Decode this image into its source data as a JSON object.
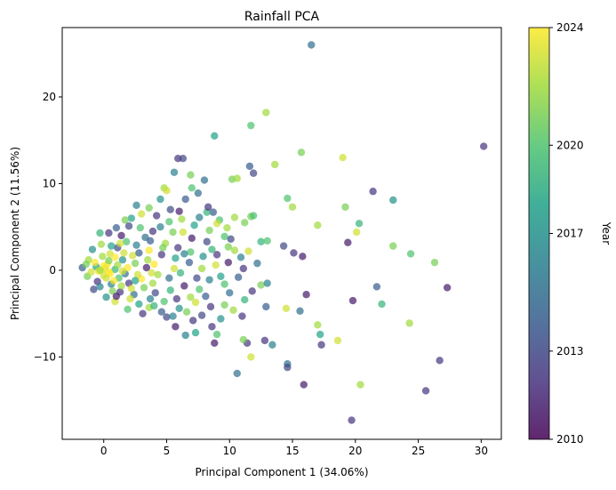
{
  "chart_data": {
    "type": "scatter",
    "title": "Rainfall PCA",
    "xlabel": "Principal Component 1 (34.06%)",
    "ylabel": "Principal Component 2 (11.56%)",
    "xlim": [
      -3.3,
      31.6
    ],
    "ylim": [
      -19.5,
      28.0
    ],
    "x_ticks": [
      0,
      5,
      10,
      15,
      20,
      25,
      30
    ],
    "y_ticks": [
      -10,
      0,
      10,
      20
    ],
    "grid": false,
    "colorbar": {
      "label": "Year",
      "min": 2010,
      "max": 2024,
      "ticks": [
        2010,
        2013,
        2017,
        2020,
        2024
      ],
      "colormap": "viridis"
    },
    "marker_alpha": 0.7,
    "points": [
      {
        "x": 16.5,
        "y": 26.0,
        "year": 2015
      },
      {
        "x": 30.2,
        "y": 14.3,
        "year": 2012
      },
      {
        "x": 12.9,
        "y": 18.2,
        "year": 2022
      },
      {
        "x": 11.7,
        "y": 16.7,
        "year": 2020
      },
      {
        "x": 8.8,
        "y": 15.5,
        "year": 2018
      },
      {
        "x": 15.7,
        "y": 13.6,
        "year": 2021
      },
      {
        "x": 19.0,
        "y": 13.0,
        "year": 2023
      },
      {
        "x": 5.9,
        "y": 12.9,
        "year": 2012
      },
      {
        "x": 6.3,
        "y": 12.9,
        "year": 2013
      },
      {
        "x": 13.6,
        "y": 12.2,
        "year": 2022
      },
      {
        "x": 11.6,
        "y": 12.0,
        "year": 2014
      },
      {
        "x": 11.9,
        "y": 11.2,
        "year": 2013
      },
      {
        "x": 5.6,
        "y": 11.3,
        "year": 2016
      },
      {
        "x": 6.9,
        "y": 11.0,
        "year": 2021
      },
      {
        "x": 8.0,
        "y": 10.4,
        "year": 2015
      },
      {
        "x": 10.2,
        "y": 10.5,
        "year": 2021
      },
      {
        "x": 10.6,
        "y": 10.6,
        "year": 2022
      },
      {
        "x": 21.4,
        "y": 9.1,
        "year": 2012
      },
      {
        "x": 23.0,
        "y": 8.1,
        "year": 2017
      },
      {
        "x": 14.6,
        "y": 8.3,
        "year": 2020
      },
      {
        "x": 15.0,
        "y": 7.3,
        "year": 2022
      },
      {
        "x": 19.2,
        "y": 7.3,
        "year": 2021
      },
      {
        "x": 20.3,
        "y": 5.4,
        "year": 2019
      },
      {
        "x": 17.0,
        "y": 5.2,
        "year": 2022
      },
      {
        "x": 20.1,
        "y": 4.4,
        "year": 2023
      },
      {
        "x": 19.4,
        "y": 3.2,
        "year": 2011
      },
      {
        "x": 23.0,
        "y": 2.8,
        "year": 2021
      },
      {
        "x": 24.4,
        "y": 1.9,
        "year": 2020
      },
      {
        "x": 26.3,
        "y": 0.9,
        "year": 2021
      },
      {
        "x": 15.1,
        "y": 2.0,
        "year": 2012
      },
      {
        "x": 15.8,
        "y": 1.6,
        "year": 2011
      },
      {
        "x": 14.3,
        "y": 2.8,
        "year": 2013
      },
      {
        "x": 27.3,
        "y": -2.0,
        "year": 2011
      },
      {
        "x": 21.7,
        "y": -1.9,
        "year": 2014
      },
      {
        "x": 22.1,
        "y": -3.9,
        "year": 2019
      },
      {
        "x": 19.8,
        "y": -3.5,
        "year": 2011
      },
      {
        "x": 16.1,
        "y": -2.8,
        "year": 2011
      },
      {
        "x": 15.6,
        "y": -4.7,
        "year": 2015
      },
      {
        "x": 14.5,
        "y": -4.4,
        "year": 2023
      },
      {
        "x": 17.0,
        "y": -6.3,
        "year": 2022
      },
      {
        "x": 17.2,
        "y": -7.4,
        "year": 2018
      },
      {
        "x": 17.3,
        "y": -8.6,
        "year": 2012
      },
      {
        "x": 18.6,
        "y": -8.1,
        "year": 2023
      },
      {
        "x": 24.3,
        "y": -6.1,
        "year": 2022
      },
      {
        "x": 26.7,
        "y": -10.4,
        "year": 2012
      },
      {
        "x": 25.6,
        "y": -13.9,
        "year": 2012
      },
      {
        "x": 20.4,
        "y": -13.2,
        "year": 2022
      },
      {
        "x": 19.7,
        "y": -17.3,
        "year": 2012
      },
      {
        "x": 15.9,
        "y": -13.2,
        "year": 2011
      },
      {
        "x": 14.6,
        "y": -10.8,
        "year": 2015
      },
      {
        "x": 14.6,
        "y": -11.2,
        "year": 2013
      },
      {
        "x": 13.4,
        "y": -8.6,
        "year": 2016
      },
      {
        "x": 12.8,
        "y": -8.1,
        "year": 2012
      },
      {
        "x": 12.9,
        "y": -4.2,
        "year": 2014
      },
      {
        "x": 11.7,
        "y": -10.0,
        "year": 2023
      },
      {
        "x": 10.6,
        "y": -11.9,
        "year": 2015
      },
      {
        "x": 11.4,
        "y": -8.4,
        "year": 2012
      },
      {
        "x": 11.1,
        "y": -8.0,
        "year": 2021
      },
      {
        "x": 11.0,
        "y": -5.3,
        "year": 2012
      },
      {
        "x": 8.8,
        "y": -8.4,
        "year": 2011
      },
      {
        "x": 9.0,
        "y": -7.4,
        "year": 2020
      },
      {
        "x": 8.6,
        "y": -6.5,
        "year": 2012
      },
      {
        "x": 7.3,
        "y": -7.2,
        "year": 2018
      },
      {
        "x": 7.1,
        "y": -5.8,
        "year": 2012
      },
      {
        "x": 6.5,
        "y": -7.5,
        "year": 2016
      },
      {
        "x": 5.7,
        "y": -6.5,
        "year": 2011
      },
      {
        "x": 5.0,
        "y": -5.4,
        "year": 2013
      },
      {
        "x": 12.5,
        "y": -1.7,
        "year": 2021
      },
      {
        "x": 13.0,
        "y": -1.5,
        "year": 2016
      },
      {
        "x": 12.5,
        "y": 3.3,
        "year": 2019
      },
      {
        "x": 13.0,
        "y": 3.4,
        "year": 2020
      },
      {
        "x": 11.7,
        "y": 6.2,
        "year": 2021
      },
      {
        "x": 11.9,
        "y": 6.3,
        "year": 2020
      },
      {
        "x": 10.4,
        "y": 6.1,
        "year": 2022
      },
      {
        "x": 11.2,
        "y": 5.5,
        "year": 2021
      },
      {
        "x": 9.2,
        "y": 5.8,
        "year": 2020
      },
      {
        "x": 9.0,
        "y": 5.4,
        "year": 2023
      },
      {
        "x": 9.8,
        "y": 4.9,
        "year": 2022
      },
      {
        "x": 9.6,
        "y": 3.9,
        "year": 2020
      },
      {
        "x": 8.7,
        "y": 6.7,
        "year": 2014
      },
      {
        "x": 8.2,
        "y": 6.7,
        "year": 2019
      },
      {
        "x": 8.3,
        "y": 7.3,
        "year": 2012
      },
      {
        "x": 7.5,
        "y": 8.9,
        "year": 2015
      },
      {
        "x": 7.0,
        "y": 9.5,
        "year": 2020
      },
      {
        "x": 6.5,
        "y": 8.2,
        "year": 2014
      },
      {
        "x": 5.3,
        "y": 7.0,
        "year": 2013
      },
      {
        "x": 4.8,
        "y": 9.5,
        "year": 2022
      },
      {
        "x": 5.0,
        "y": 9.2,
        "year": 2023
      },
      {
        "x": 4.5,
        "y": 8.2,
        "year": 2017
      },
      {
        "x": 3.6,
        "y": 7.2,
        "year": 2021
      },
      {
        "x": 2.6,
        "y": 7.5,
        "year": 2016
      },
      {
        "x": 3.0,
        "y": 6.5,
        "year": 2023
      },
      {
        "x": 2.2,
        "y": 6.0,
        "year": 2018
      },
      {
        "x": 1.7,
        "y": 5.8,
        "year": 2021
      },
      {
        "x": 1.0,
        "y": 4.9,
        "year": 2014
      },
      {
        "x": 0.4,
        "y": 4.3,
        "year": 2012
      },
      {
        "x": -0.3,
        "y": 4.3,
        "year": 2019
      },
      {
        "x": 3.9,
        "y": 4.5,
        "year": 2012
      },
      {
        "x": 4.5,
        "y": 5.0,
        "year": 2016
      },
      {
        "x": 5.5,
        "y": 4.4,
        "year": 2021
      },
      {
        "x": 6.3,
        "y": 4.4,
        "year": 2023
      },
      {
        "x": 7.0,
        "y": 3.7,
        "year": 2011
      },
      {
        "x": 8.2,
        "y": 3.3,
        "year": 2013
      },
      {
        "x": 9.9,
        "y": 2.7,
        "year": 2021
      },
      {
        "x": 10.4,
        "y": 2.3,
        "year": 2022
      },
      {
        "x": 9.0,
        "y": 1.8,
        "year": 2012
      },
      {
        "x": 10.9,
        "y": 1.5,
        "year": 2016
      },
      {
        "x": 11.1,
        "y": 0.2,
        "year": 2012
      },
      {
        "x": 10.7,
        "y": -0.8,
        "year": 2014
      },
      {
        "x": 9.6,
        "y": -1.6,
        "year": 2020
      },
      {
        "x": 10.0,
        "y": -2.6,
        "year": 2015
      },
      {
        "x": 11.2,
        "y": -3.4,
        "year": 2019
      },
      {
        "x": 9.6,
        "y": -4.0,
        "year": 2021
      },
      {
        "x": 8.5,
        "y": -4.2,
        "year": 2012
      },
      {
        "x": 7.3,
        "y": -3.7,
        "year": 2023
      },
      {
        "x": 6.0,
        "y": -4.4,
        "year": 2017
      },
      {
        "x": 4.6,
        "y": -4.8,
        "year": 2014
      },
      {
        "x": 3.6,
        "y": -4.3,
        "year": 2022
      },
      {
        "x": 2.8,
        "y": -3.9,
        "year": 2018
      },
      {
        "x": 1.9,
        "y": -4.5,
        "year": 2020
      },
      {
        "x": 0.9,
        "y": -3.6,
        "year": 2023
      },
      {
        "x": 0.2,
        "y": -3.1,
        "year": 2017
      },
      {
        "x": 1.3,
        "y": -2.5,
        "year": 2012
      },
      {
        "x": 2.4,
        "y": -2.8,
        "year": 2015
      },
      {
        "x": 3.2,
        "y": -2.0,
        "year": 2021
      },
      {
        "x": 4.1,
        "y": -2.6,
        "year": 2013
      },
      {
        "x": 5.3,
        "y": -2.3,
        "year": 2019
      },
      {
        "x": 6.4,
        "y": -1.8,
        "year": 2011
      },
      {
        "x": 7.6,
        "y": -2.2,
        "year": 2020
      },
      {
        "x": 8.4,
        "y": -1.1,
        "year": 2016
      },
      {
        "x": 7.8,
        "y": 0.2,
        "year": 2022
      },
      {
        "x": 6.8,
        "y": 0.9,
        "year": 2014
      },
      {
        "x": 5.7,
        "y": 1.4,
        "year": 2018
      },
      {
        "x": 4.6,
        "y": 1.8,
        "year": 2012
      },
      {
        "x": 3.6,
        "y": 2.3,
        "year": 2024
      },
      {
        "x": 2.6,
        "y": 2.9,
        "year": 2016
      },
      {
        "x": 1.8,
        "y": 3.3,
        "year": 2020
      },
      {
        "x": 1.1,
        "y": 2.6,
        "year": 2013
      },
      {
        "x": 0.5,
        "y": 1.9,
        "year": 2023
      },
      {
        "x": 1.5,
        "y": 1.2,
        "year": 2017
      },
      {
        "x": 2.5,
        "y": 0.8,
        "year": 2021
      },
      {
        "x": 3.4,
        "y": 0.3,
        "year": 2011
      },
      {
        "x": 4.3,
        "y": -0.5,
        "year": 2022
      },
      {
        "x": 5.2,
        "y": -0.9,
        "year": 2015
      },
      {
        "x": 6.1,
        "y": -0.3,
        "year": 2019
      },
      {
        "x": 3.0,
        "y": -1.0,
        "year": 2024
      },
      {
        "x": 2.0,
        "y": -1.5,
        "year": 2012
      },
      {
        "x": 1.2,
        "y": -0.9,
        "year": 2020
      },
      {
        "x": 0.6,
        "y": -1.6,
        "year": 2016
      },
      {
        "x": 0.0,
        "y": -0.6,
        "year": 2023
      },
      {
        "x": -0.6,
        "y": 0.4,
        "year": 2018
      },
      {
        "x": -1.2,
        "y": 1.2,
        "year": 2022
      },
      {
        "x": -1.7,
        "y": 0.3,
        "year": 2014
      },
      {
        "x": -1.3,
        "y": -0.7,
        "year": 2021
      },
      {
        "x": -0.5,
        "y": -1.3,
        "year": 2012
      },
      {
        "x": 0.3,
        "y": 0.7,
        "year": 2024
      },
      {
        "x": 0.9,
        "y": 0.1,
        "year": 2019
      },
      {
        "x": 1.7,
        "y": -0.4,
        "year": 2015
      },
      {
        "x": 2.3,
        "y": 1.7,
        "year": 2023
      },
      {
        "x": -0.9,
        "y": 2.4,
        "year": 2017
      },
      {
        "x": -0.2,
        "y": 3.0,
        "year": 2022
      },
      {
        "x": 0.7,
        "y": -2.4,
        "year": 2021
      },
      {
        "x": -0.8,
        "y": -2.2,
        "year": 2013
      },
      {
        "x": 1.4,
        "y": 4.0,
        "year": 2011
      },
      {
        "x": 2.9,
        "y": 4.9,
        "year": 2020
      },
      {
        "x": 3.7,
        "y": 3.4,
        "year": 2014
      },
      {
        "x": 4.9,
        "y": 3.1,
        "year": 2022
      },
      {
        "x": 5.9,
        "y": 2.6,
        "year": 2012
      },
      {
        "x": 6.9,
        "y": 2.1,
        "year": 2020
      },
      {
        "x": 7.9,
        "y": 1.6,
        "year": 2017
      },
      {
        "x": 8.9,
        "y": 0.6,
        "year": 2023
      },
      {
        "x": 9.9,
        "y": 0.9,
        "year": 2011
      },
      {
        "x": 9.3,
        "y": -0.7,
        "year": 2018
      },
      {
        "x": 8.1,
        "y": -3.0,
        "year": 2014
      },
      {
        "x": 6.9,
        "y": -3.1,
        "year": 2022
      },
      {
        "x": 5.8,
        "y": -3.3,
        "year": 2012
      },
      {
        "x": 4.8,
        "y": -3.6,
        "year": 2020
      },
      {
        "x": 3.7,
        "y": -3.3,
        "year": 2016
      },
      {
        "x": 2.1,
        "y": -3.3,
        "year": 2023
      },
      {
        "x": 1.0,
        "y": -3.0,
        "year": 2011
      },
      {
        "x": -0.4,
        "y": -0.1,
        "year": 2024
      },
      {
        "x": 0.1,
        "y": 0.2,
        "year": 2023
      },
      {
        "x": 0.5,
        "y": -0.4,
        "year": 2024
      },
      {
        "x": 1.1,
        "y": 0.6,
        "year": 2022
      },
      {
        "x": -1.0,
        "y": -0.2,
        "year": 2023
      },
      {
        "x": 0.4,
        "y": 1.1,
        "year": 2021
      },
      {
        "x": 1.9,
        "y": 0.3,
        "year": 2024
      },
      {
        "x": 2.7,
        "y": -0.5,
        "year": 2023
      },
      {
        "x": 3.5,
        "y": 1.2,
        "year": 2022
      },
      {
        "x": 4.0,
        "y": 0.7,
        "year": 2024
      },
      {
        "x": 1.6,
        "y": 2.0,
        "year": 2023
      },
      {
        "x": -0.1,
        "y": 1.6,
        "year": 2022
      },
      {
        "x": 0.8,
        "y": -1.2,
        "year": 2024
      },
      {
        "x": 2.2,
        "y": -2.1,
        "year": 2023
      },
      {
        "x": 3.9,
        "y": -1.5,
        "year": 2022
      },
      {
        "x": 5.6,
        "y": 0.2,
        "year": 2023
      },
      {
        "x": 4.7,
        "y": 2.6,
        "year": 2021
      },
      {
        "x": 6.4,
        "y": 1.9,
        "year": 2016
      },
      {
        "x": 7.4,
        "y": -0.9,
        "year": 2013
      },
      {
        "x": 8.6,
        "y": 2.4,
        "year": 2019
      },
      {
        "x": 3.3,
        "y": 3.8,
        "year": 2015
      },
      {
        "x": 5.2,
        "y": 5.6,
        "year": 2020
      },
      {
        "x": 6.0,
        "y": 6.8,
        "year": 2011
      },
      {
        "x": 7.2,
        "y": 5.2,
        "year": 2018
      },
      {
        "x": 2.0,
        "y": 5.1,
        "year": 2013
      },
      {
        "x": 4.2,
        "y": 6.3,
        "year": 2012
      },
      {
        "x": 3.1,
        "y": -5.0,
        "year": 2012
      },
      {
        "x": 4.0,
        "y": -4.1,
        "year": 2019
      },
      {
        "x": 5.5,
        "y": -5.3,
        "year": 2016
      },
      {
        "x": 6.6,
        "y": -4.8,
        "year": 2021
      },
      {
        "x": 7.8,
        "y": -5.2,
        "year": 2013
      },
      {
        "x": 9.3,
        "y": -5.6,
        "year": 2017
      },
      {
        "x": 10.3,
        "y": -4.6,
        "year": 2022
      },
      {
        "x": 11.8,
        "y": -2.4,
        "year": 2012
      },
      {
        "x": 12.2,
        "y": 0.8,
        "year": 2015
      },
      {
        "x": 11.5,
        "y": 2.2,
        "year": 2023
      },
      {
        "x": 10.1,
        "y": 3.6,
        "year": 2013
      },
      {
        "x": 8.4,
        "y": 4.6,
        "year": 2021
      },
      {
        "x": 7.6,
        "y": 6.1,
        "year": 2016
      },
      {
        "x": 6.2,
        "y": 5.9,
        "year": 2022
      },
      {
        "x": 2.5,
        "y": -1.2,
        "year": 2018
      },
      {
        "x": 1.4,
        "y": -1.8,
        "year": 2022
      },
      {
        "x": -0.3,
        "y": -1.9,
        "year": 2016
      },
      {
        "x": -1.4,
        "y": 0.7,
        "year": 2021
      },
      {
        "x": 0.6,
        "y": 2.8,
        "year": 2018
      },
      {
        "x": 1.3,
        "y": 3.1,
        "year": 2023
      },
      {
        "x": 2.8,
        "y": 2.0,
        "year": 2014
      },
      {
        "x": 3.8,
        "y": -0.3,
        "year": 2023
      },
      {
        "x": 0.2,
        "y": -0.9,
        "year": 2023
      },
      {
        "x": -0.7,
        "y": 0.9,
        "year": 2024
      },
      {
        "x": 0.9,
        "y": 1.5,
        "year": 2024
      },
      {
        "x": 1.5,
        "y": -0.1,
        "year": 2023
      },
      {
        "x": 0.0,
        "y": 0.5,
        "year": 2024
      },
      {
        "x": -0.3,
        "y": 0.0,
        "year": 2022
      },
      {
        "x": 0.4,
        "y": -0.2,
        "year": 2024
      }
    ]
  }
}
